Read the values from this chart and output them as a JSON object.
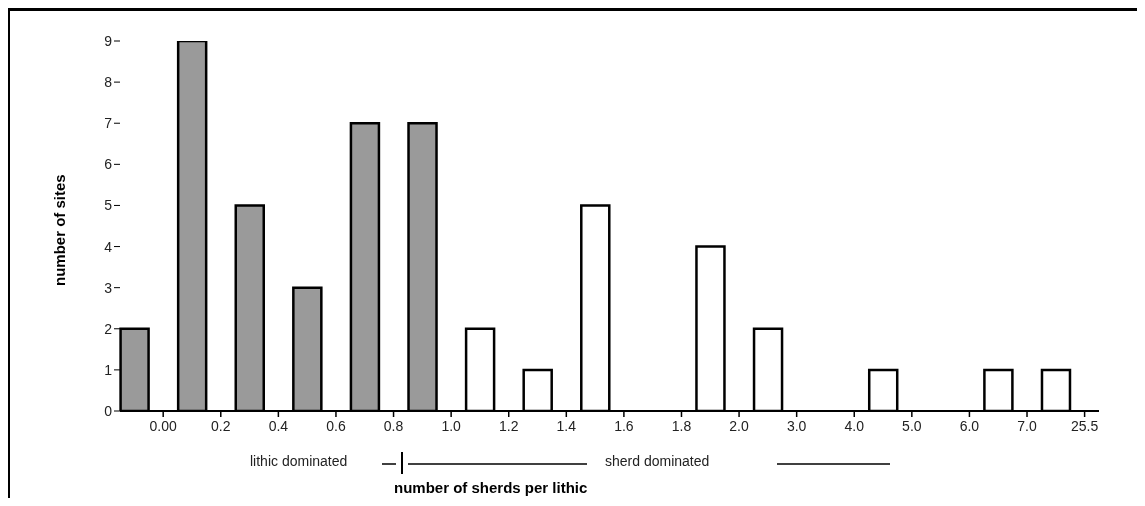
{
  "chart_data": {
    "type": "bar",
    "xlabel": "number of sherds per lithic",
    "ylabel": "number of sites",
    "categories": [
      null,
      "0.00",
      null,
      "0.2",
      null,
      "0.4",
      null,
      "0.6",
      null,
      "0.8",
      null,
      "1.0",
      null,
      "1.2",
      null,
      "1.4",
      null,
      "1.6",
      null,
      "1.8",
      null,
      "2.0",
      null,
      "3.0",
      null,
      "4.0",
      null,
      "5.0",
      null,
      "6.0",
      null,
      "7.0",
      null,
      "25.5"
    ],
    "values": [
      2,
      null,
      9,
      null,
      5,
      null,
      3,
      null,
      7,
      null,
      7,
      null,
      2,
      null,
      1,
      null,
      5,
      null,
      0,
      null,
      4,
      null,
      2,
      null,
      0,
      null,
      1,
      null,
      0,
      null,
      1,
      null,
      1,
      null
    ],
    "colors": [
      "#9a9a9a",
      "#ffffff",
      "#9a9a9a",
      "#ffffff",
      "#9a9a9a",
      "#ffffff",
      "#9a9a9a",
      "#ffffff",
      "#9a9a9a",
      "#ffffff",
      "#9a9a9a",
      "#ffffff",
      "#ffffff",
      "#ffffff",
      "#ffffff",
      "#ffffff",
      "#ffffff",
      "#ffffff",
      "#ffffff",
      "#ffffff",
      "#ffffff",
      "#ffffff",
      "#ffffff",
      "#ffffff",
      "#ffffff",
      "#ffffff",
      "#ffffff",
      "#ffffff",
      "#ffffff",
      "#ffffff",
      "#ffffff",
      "#ffffff",
      "#ffffff",
      "#ffffff"
    ],
    "ylim": [
      0,
      9
    ],
    "yticks": [
      0,
      1,
      2,
      3,
      4,
      5,
      6,
      7,
      8,
      9
    ],
    "annotations": [
      "lithic dominated",
      "sherd dominated"
    ],
    "grid": false,
    "legend": false
  }
}
